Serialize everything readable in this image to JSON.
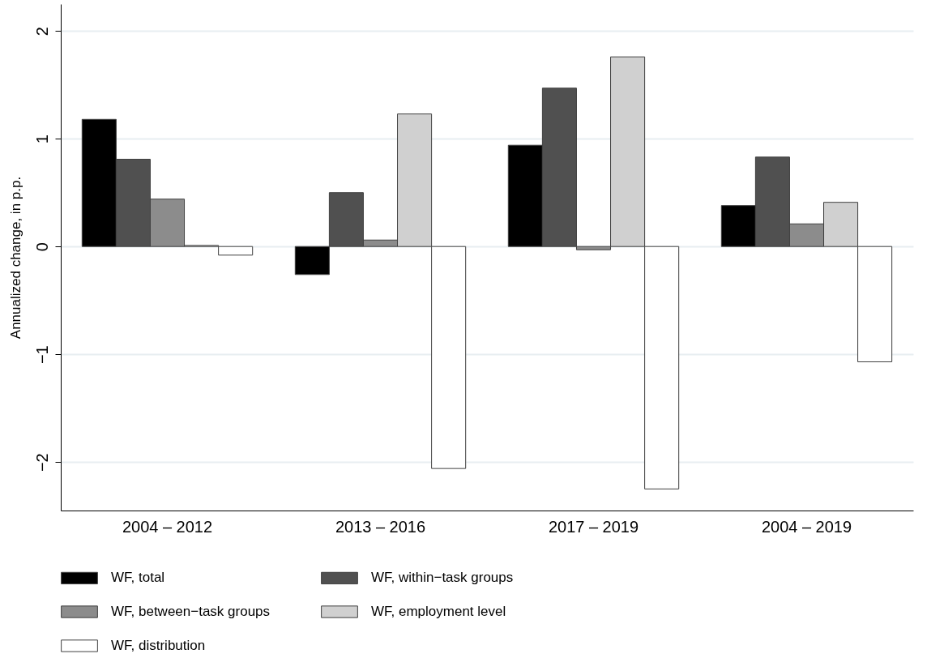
{
  "chart_data": {
    "type": "bar",
    "ylabel": "Annualized change, in p.p.",
    "categories": [
      "2004 – 2012",
      "2013 – 2016",
      "2017 – 2019",
      "2004 – 2019"
    ],
    "series": [
      {
        "name": "WF, total",
        "color": "#000000",
        "values": [
          1.18,
          -0.26,
          0.94,
          0.38
        ]
      },
      {
        "name": "WF, within−task groups",
        "color": "#505050",
        "values": [
          0.81,
          0.5,
          1.47,
          0.83
        ]
      },
      {
        "name": "WF, between−task groups",
        "color": "#8c8c8c",
        "values": [
          0.44,
          0.06,
          -0.03,
          0.21
        ]
      },
      {
        "name": "WF, employment level",
        "color": "#d0d0d0",
        "values": [
          0.01,
          1.23,
          1.76,
          0.41
        ]
      },
      {
        "name": "WF, distribution",
        "color": "#ffffff",
        "values": [
          -0.08,
          -2.06,
          -2.25,
          -1.07
        ]
      }
    ],
    "ylim": [
      -2.45,
      2.25
    ],
    "yticks": [
      {
        "value": -2,
        "label": "−2"
      },
      {
        "value": -1,
        "label": "−1"
      },
      0,
      1,
      2
    ],
    "grid": "y",
    "legend": "bottom"
  }
}
